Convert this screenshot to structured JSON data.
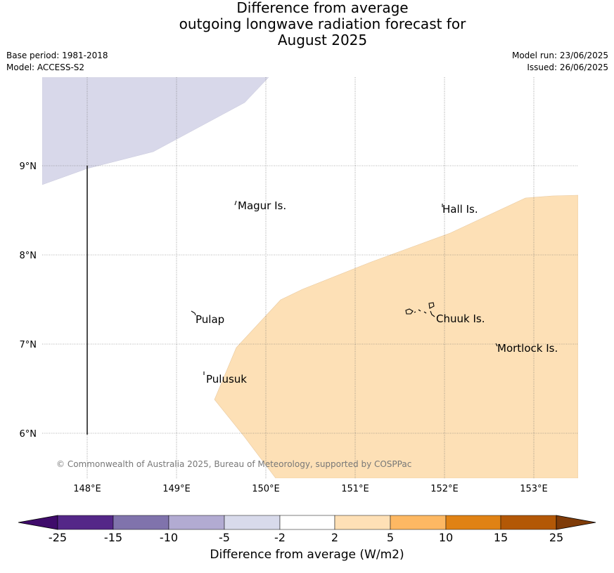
{
  "title": {
    "line1": "Difference from average",
    "line2": "outgoing longwave radiation forecast for",
    "line3": "August 2025"
  },
  "meta": {
    "base_period": "Base period: 1981-2018",
    "model": "Model: ACCESS-S2",
    "model_run": "Model run: 23/06/2025",
    "issued": "Issued: 26/06/2025"
  },
  "map": {
    "lon_range": [
      147.5,
      153.5
    ],
    "lat_range": [
      5.5,
      10.0
    ],
    "lon_ticks": [
      "148°E",
      "149°E",
      "150°E",
      "151°E",
      "152°E",
      "153°E"
    ],
    "lat_ticks": [
      "9°N",
      "8°N",
      "7°N",
      "6°N"
    ],
    "places": [
      {
        "name": "Magur Is."
      },
      {
        "name": "Hall Is."
      },
      {
        "name": "Pulap"
      },
      {
        "name": "Chuuk Is."
      },
      {
        "name": "Mortlock Is."
      },
      {
        "name": "Pulusuk"
      }
    ],
    "copyright": "© Commonwealth of Australia 2025, Bureau of Meteorology, supported by COSPPac",
    "regions": [
      {
        "category": "-5 to -2",
        "color": "#d8d8ea"
      },
      {
        "category": "2 to 5",
        "color": "#fde0b6"
      }
    ]
  },
  "colorbar": {
    "label": "Difference from average (W/m2)",
    "ticks": [
      "-25",
      "-15",
      "-10",
      "-5",
      "-2",
      "2",
      "5",
      "10",
      "15",
      "25"
    ],
    "colors": [
      "#3f0b6b",
      "#542788",
      "#8073ac",
      "#b2abd2",
      "#d8daeb",
      "#ffffff",
      "#fee0b6",
      "#fdb863",
      "#e08214",
      "#b35806",
      "#7f3b08"
    ]
  }
}
